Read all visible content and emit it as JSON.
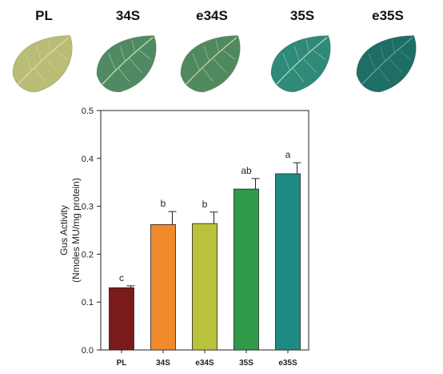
{
  "leaves": [
    {
      "label": "PL",
      "fill": "#b9bd75",
      "vein": "#d8d8a8"
    },
    {
      "label": "34S",
      "fill": "#4f8a63",
      "vein": "#c5d0b0"
    },
    {
      "label": "e34S",
      "fill": "#4f8a5e",
      "vein": "#c0cba8"
    },
    {
      "label": "35S",
      "fill": "#2f8a78",
      "vein": "#a8cfc0"
    },
    {
      "label": "e35S",
      "fill": "#1f6e66",
      "vein": "#5fa096"
    }
  ],
  "chart_data": {
    "type": "bar",
    "ylabel_lines": [
      "Gus Activity",
      "(Nmoles MU/mg protein)"
    ],
    "ylim": [
      0,
      0.5
    ],
    "yticks": [
      "0.0",
      "0.1",
      "0.2",
      "0.3",
      "0.4",
      "0.5"
    ],
    "categories": [
      "PL",
      "34S",
      "e34S",
      "35S",
      "e35S"
    ],
    "values": [
      0.13,
      0.262,
      0.264,
      0.336,
      0.368
    ],
    "errors": [
      0.004,
      0.027,
      0.024,
      0.022,
      0.023
    ],
    "letters": [
      "c",
      "b",
      "b",
      "ab",
      "a"
    ],
    "colors": [
      "#7b1a1a",
      "#f08a2c",
      "#b9c23a",
      "#2e9a4a",
      "#1f8a82"
    ],
    "grid": false
  }
}
